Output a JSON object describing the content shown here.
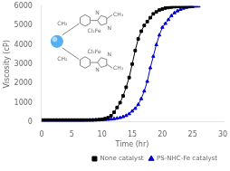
{
  "chart_data": {
    "type": "line",
    "xlabel": "Time (hr)",
    "ylabel": "Viscosity (cP)",
    "xlim": [
      0,
      30
    ],
    "ylim": [
      0,
      6000
    ],
    "xticks": [
      0,
      5,
      10,
      15,
      20,
      25,
      30
    ],
    "yticks": [
      0,
      1000,
      2000,
      3000,
      4000,
      5000,
      6000
    ],
    "grid": false,
    "legend": "lower right",
    "series": [
      {
        "name": "None catalyst",
        "color": "#000000",
        "marker": "square",
        "x": [
          0,
          0.5,
          1,
          1.5,
          2,
          2.5,
          3,
          3.5,
          4,
          4.5,
          5,
          5.5,
          6,
          6.5,
          7,
          7.5,
          8,
          8.5,
          9,
          9.5,
          10,
          10.5,
          11,
          11.5,
          12,
          12.5,
          13,
          13.5,
          14,
          14.5,
          15,
          15.5,
          16,
          16.5,
          17,
          17.5,
          18,
          18.5,
          19,
          19.5,
          20,
          20.5,
          21,
          21.5,
          22,
          22.5,
          23,
          23.5,
          24,
          24.5,
          25
        ],
        "values": [
          100,
          100,
          100,
          100,
          100,
          100,
          100,
          100,
          100,
          100,
          100,
          100,
          100,
          100,
          100,
          100,
          100,
          100,
          110,
          120,
          140,
          170,
          220,
          320,
          500,
          750,
          1000,
          1350,
          1800,
          2300,
          3000,
          3700,
          4300,
          4700,
          5000,
          5200,
          5400,
          5600,
          5700,
          5800,
          5850,
          5900,
          5930,
          5950,
          5970,
          5980,
          5990,
          5995,
          5998,
          6000,
          6000
        ]
      },
      {
        "name": "PS-NHC-Fe catalyst",
        "color": "#0000cc",
        "marker": "triangle",
        "x": [
          0,
          0.5,
          1,
          1.5,
          2,
          2.5,
          3,
          3.5,
          4,
          4.5,
          5,
          5.5,
          6,
          6.5,
          7,
          7.5,
          8,
          8.5,
          9,
          9.5,
          10,
          10.5,
          11,
          11.5,
          12,
          12.5,
          13,
          13.5,
          14,
          14.5,
          15,
          15.5,
          16,
          16.5,
          17,
          17.5,
          18,
          18.5,
          19,
          19.5,
          20,
          20.5,
          21,
          21.5,
          22,
          22.5,
          23,
          23.5,
          24,
          24.5,
          25,
          25.5,
          26
        ],
        "values": [
          80,
          80,
          80,
          80,
          80,
          80,
          80,
          80,
          80,
          80,
          80,
          80,
          80,
          80,
          80,
          85,
          90,
          95,
          100,
          105,
          110,
          120,
          130,
          145,
          165,
          190,
          220,
          270,
          330,
          420,
          560,
          700,
          900,
          1200,
          1600,
          2100,
          2800,
          3400,
          4000,
          4500,
          4900,
          5100,
          5300,
          5500,
          5650,
          5750,
          5830,
          5890,
          5930,
          5960,
          5980,
          5995,
          6000
        ]
      }
    ],
    "annotations": [
      "CH₂",
      "N",
      "N",
      "CH₃",
      "Cl₂Fe",
      "CH₂",
      "N",
      "N",
      "CH₃",
      "Cl₂Fe"
    ]
  }
}
